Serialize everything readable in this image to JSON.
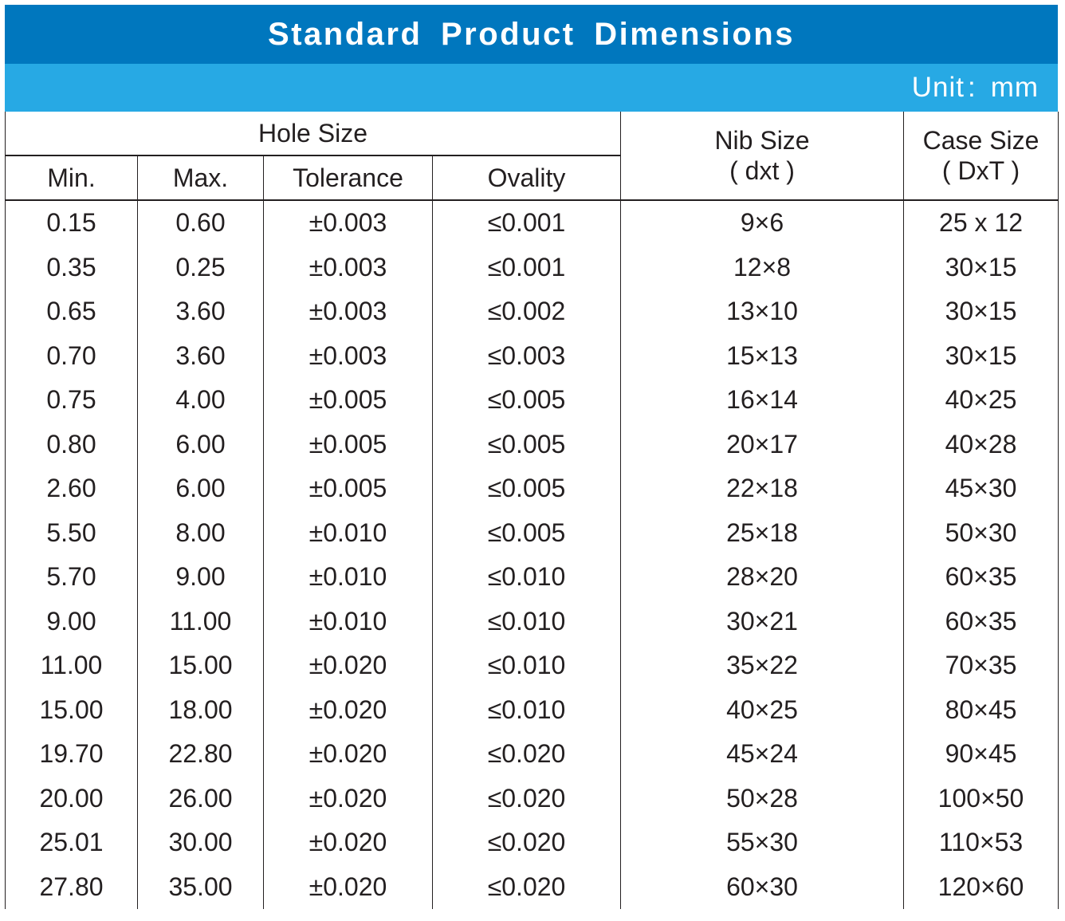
{
  "title": "Standard Product Dimensions",
  "unit": {
    "label": "Unit",
    "separator": ":",
    "value": "mm"
  },
  "headers": {
    "hole_size": "Hole Size",
    "min": "Min.",
    "max": "Max.",
    "tolerance": "Tolerance",
    "ovality": "Ovality",
    "nib_size": "Nib Size",
    "nib_size_sub": "( dxt )",
    "case_size": "Case Size",
    "case_size_sub": "( DxT )"
  },
  "rows": [
    {
      "min": "0.15",
      "max": "0.60",
      "tolerance": "±0.003",
      "ovality": "≤0.001",
      "nib": "9×6",
      "case": "25 x 12"
    },
    {
      "min": "0.35",
      "max": "0.25",
      "tolerance": "±0.003",
      "ovality": "≤0.001",
      "nib": "12×8",
      "case": "30×15"
    },
    {
      "min": "0.65",
      "max": "3.60",
      "tolerance": "±0.003",
      "ovality": "≤0.002",
      "nib": "13×10",
      "case": "30×15"
    },
    {
      "min": "0.70",
      "max": "3.60",
      "tolerance": "±0.003",
      "ovality": "≤0.003",
      "nib": "15×13",
      "case": "30×15"
    },
    {
      "min": "0.75",
      "max": "4.00",
      "tolerance": "±0.005",
      "ovality": "≤0.005",
      "nib": "16×14",
      "case": "40×25"
    },
    {
      "min": "0.80",
      "max": "6.00",
      "tolerance": "±0.005",
      "ovality": "≤0.005",
      "nib": "20×17",
      "case": "40×28"
    },
    {
      "min": "2.60",
      "max": "6.00",
      "tolerance": "±0.005",
      "ovality": "≤0.005",
      "nib": "22×18",
      "case": "45×30"
    },
    {
      "min": "5.50",
      "max": "8.00",
      "tolerance": "±0.010",
      "ovality": "≤0.005",
      "nib": "25×18",
      "case": "50×30"
    },
    {
      "min": "5.70",
      "max": "9.00",
      "tolerance": "±0.010",
      "ovality": "≤0.010",
      "nib": "28×20",
      "case": "60×35"
    },
    {
      "min": "9.00",
      "max": "11.00",
      "tolerance": "±0.010",
      "ovality": "≤0.010",
      "nib": "30×21",
      "case": "60×35"
    },
    {
      "min": "11.00",
      "max": "15.00",
      "tolerance": "±0.020",
      "ovality": "≤0.010",
      "nib": "35×22",
      "case": "70×35"
    },
    {
      "min": "15.00",
      "max": "18.00",
      "tolerance": "±0.020",
      "ovality": "≤0.010",
      "nib": "40×25",
      "case": "80×45"
    },
    {
      "min": "19.70",
      "max": "22.80",
      "tolerance": "±0.020",
      "ovality": "≤0.020",
      "nib": "45×24",
      "case": "90×45"
    },
    {
      "min": "20.00",
      "max": "26.00",
      "tolerance": "±0.020",
      "ovality": "≤0.020",
      "nib": "50×28",
      "case": "100×50"
    },
    {
      "min": "25.01",
      "max": "30.00",
      "tolerance": "±0.020",
      "ovality": "≤0.020",
      "nib": "55×30",
      "case": "110×53"
    },
    {
      "min": "27.80",
      "max": "35.00",
      "tolerance": "±0.020",
      "ovality": "≤0.020",
      "nib": "60×30",
      "case": "120×60"
    }
  ]
}
